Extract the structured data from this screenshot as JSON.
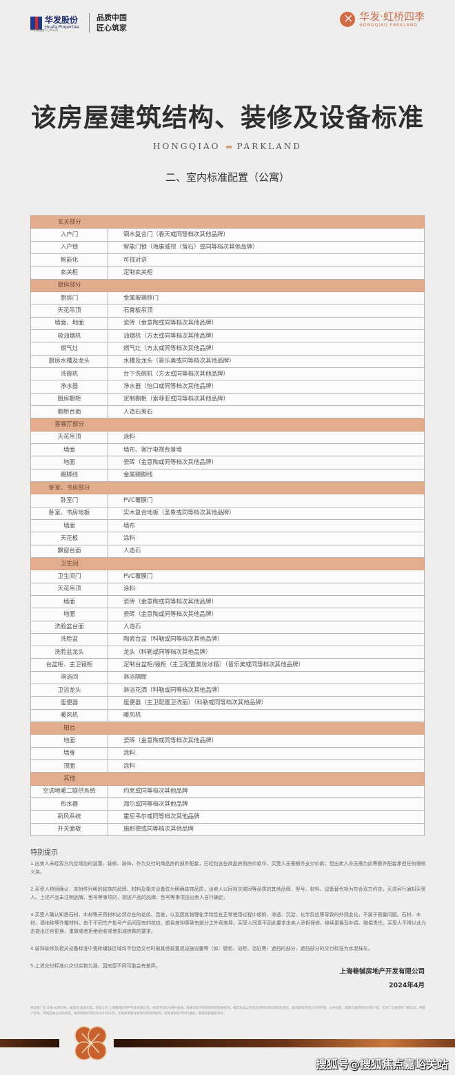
{
  "header": {
    "left_brand": "华发股份",
    "left_brand_en": "Huafa Properties",
    "left_brand_sub": "华发集团旗下上市公司",
    "slogan_1": "品质中国",
    "slogan_2": "匠心筑家",
    "right_brand": "华发·虹桥四季",
    "right_brand_en": "HONGQIAO PARKLAND"
  },
  "title": "该房屋建筑结构、装修及设备标准",
  "brand_line": {
    "left": "HONGQIAO",
    "right": "PARKLAND"
  },
  "subtitle": "二、室内标准配置（公寓）",
  "colors": {
    "section_header": "#e2ad8c",
    "accent": "#c8734f"
  },
  "sections": [
    {
      "name": "玄关部分",
      "items": [
        [
          "入户门",
          "钢木复合门（春天或同等档次其他品牌）"
        ],
        [
          "入户锁",
          "智能门锁（海康威视（萤石）或同等档次其他品牌）"
        ],
        [
          "智能化",
          "可视对讲"
        ],
        [
          "玄关柜",
          "定制玄关柜"
        ]
      ]
    },
    {
      "name": "厨房部分",
      "items": [
        [
          "厨房门",
          "金属玻璃移门"
        ],
        [
          "天花吊顶",
          "石膏板吊顶"
        ],
        [
          "墙面、地面",
          "瓷砖（金意陶或同等档次其他品牌）"
        ],
        [
          "吸油烟机",
          "油烟机（方太或同等档次其他品牌）"
        ],
        [
          "燃气灶",
          "燃气灶（方太或同等档次其他品牌）"
        ],
        [
          "厨房水槽及龙头",
          "水槽及龙头（普乐美或同等档次其他品牌）"
        ],
        [
          "洗碗机",
          "台下洗碗机（方太或同等档次其他品牌）"
        ],
        [
          "净水器",
          "净水器（怡口或同等档次其他品牌）"
        ],
        [
          "厨房橱柜",
          "定制橱柜（索菲亚或同等档次其他品牌）"
        ],
        [
          "橱柜台面",
          "人造石英石"
        ]
      ]
    },
    {
      "name": "客餐厅部分",
      "items": [
        [
          "天花吊顶",
          "涂料"
        ],
        [
          "墙面",
          "墙布、客厅电视背景墙"
        ],
        [
          "地面",
          "瓷砖（金意陶或同等档次其他品牌）"
        ],
        [
          "踢脚线",
          "金属踢脚线"
        ]
      ]
    },
    {
      "name": "卧室、书房部分",
      "items": [
        [
          "卧室门",
          "PVC覆膜门"
        ],
        [
          "卧室、书房地板",
          "实木复合地板（圣象或同等档次其他品牌）"
        ],
        [
          "墙面",
          "墙布"
        ],
        [
          "天花板",
          "涂料"
        ],
        [
          "飘窗台面",
          "人造石"
        ]
      ]
    },
    {
      "name": "卫生间",
      "items": [
        [
          "卫生间门",
          "PVC覆膜门"
        ],
        [
          "天花吊顶",
          "涂料"
        ],
        [
          "墙面",
          "瓷砖（金意陶或同等档次其他品牌）"
        ],
        [
          "地面",
          "瓷砖（金意陶或同等档次其他品牌）"
        ],
        [
          "洗脸盆台面",
          "人造石"
        ],
        [
          "洗脸盆",
          "陶瓷台盆（科勒或同等档次其他品牌）"
        ],
        [
          "洗脸盆龙头",
          "龙头（科勒或同等档次其他品牌）"
        ],
        [
          "台盆柜、主卫镜柜",
          "定制台盆柜/镜柜（主卫配置美妆冰箱）（普乐美或同等档次其他品牌）"
        ],
        [
          "淋浴间",
          "淋浴隔断"
        ],
        [
          "卫浴龙头",
          "淋浴花洒（科勒或同等档次其他品牌）"
        ],
        [
          "座便器",
          "座便器（主卫配置卫洗丽）（科勒或同等档次其他品牌）"
        ],
        [
          "暖风机",
          "暖风机"
        ]
      ]
    },
    {
      "name": "阳台",
      "items": [
        [
          "地面",
          "瓷砖（金意陶或同等档次其他品牌）"
        ],
        [
          "墙身",
          "涂料"
        ],
        [
          "顶面",
          "涂料"
        ]
      ]
    },
    {
      "name": "其他",
      "items": [
        [
          "空调地暖二联供系统",
          "约克或同等档次其他品牌"
        ],
        [
          "热水器",
          "海尔或同等档次其他品牌"
        ],
        [
          "新风系统",
          "霍尼韦尔或同等档次其他品牌"
        ],
        [
          "开关面板",
          "施耐德或同等档次其他品牌"
        ]
      ]
    }
  ],
  "notes": {
    "title": "特别提示",
    "items": [
      "1.出卖人未经双方约定增加的装置、装修、装饰，作为交付的商品房的部外配套，已经包含在商品房购房价款中，买受人无需额外支付价款；但出卖人亦无需为此等额外配套承担任何保修义务。",
      "2.买受人特别确认：本附件列明的装饰的品牌、材料及相关设备仅为明确装饰品质，出卖人以同档次或同等品质的其他品牌、型号、材料、设备替代视为符合双方约定，无须另行通知买受人。上述产品未注明品牌、型号等事项的，则该产品的品牌、型号等事项由出卖人自行确定。",
      "3.买受人确认知悉石材、木材等天然材料必然存在的花纹、色差，以及因其物理化学特性在正常使用过程中吸附、渗透、沉淀、化学反应等导致的外观变化，不属于质量问题。石材、木材、墙地砖等外覆材料，由于不同生产批号产品间固有的花纹、颜色差别导致有部分之外观差异，买受人同意不因此要求出卖人承担保修、继续更换及补偿、赔偿责任。买受人不得以此为由提出任何更换、重做或者拒绝验收或者扣减房款的要求。",
      "4.装饰装修及相关设备标准中瓷砖铺装区域均不包括交付时被其他装置或设施设备等（如：橱柜、浴柜、浴缸等）遮挡的部分，遮挡部分的交付标准为水泥抹灰。",
      "5.上述交付标准以交付实物为准，因房型不同可能会有差异。"
    ]
  },
  "signature": {
    "company": "上海巷铖房地产开发有限公司",
    "date": "2024年4月"
  },
  "disclaimer": "本案推广名:华发·虹桥四季，备案名:溪语华庭，开发公司:上海巷铖房地产开发有限公司。本宣传资料为要约邀请，相关内容不排除因政府相关规划、规定及本公司无法控制的原因而发生变化，规划建设范围之外的环境、公共设施、道路交通等所述均系介绍，仅为广告发布时了解信息，供客户参考，不构成本公司的承诺。本资料制作时间为2024年4月，开发商保留对本资料修改的权利，如有更新恕不另行通知，敬请留意最新资料。",
  "watermark": "搜狐号@搜狐焦点嘉峪关站"
}
